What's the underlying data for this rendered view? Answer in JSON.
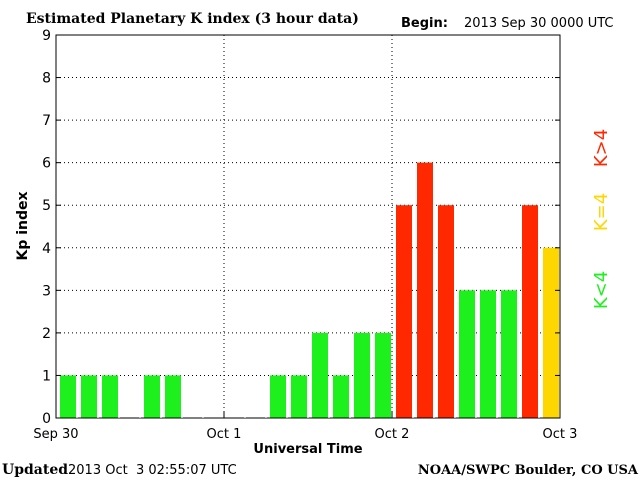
{
  "header": {
    "title": "Estimated Planetary K index (3 hour data)",
    "begin_label": "Begin:",
    "begin_value": "2013 Sep 30 0000 UTC"
  },
  "footer": {
    "updated_label": "Updated",
    "updated_value": "2013 Oct  3 02:55:07 UTC",
    "source": "NOAA/SWPC Boulder, CO USA"
  },
  "legend": [
    {
      "label": "K<4",
      "color": "#1ef01e"
    },
    {
      "label": "K=4",
      "color": "#ffd700"
    },
    {
      "label": "K>4",
      "color": "#ff2800"
    }
  ],
  "chart_data": {
    "type": "bar",
    "title": "Estimated Planetary K index (3 hour data)",
    "xlabel": "Universal Time",
    "ylabel": "Kp index",
    "ylim": [
      0,
      9
    ],
    "yticks": [
      "0",
      "1",
      "2",
      "3",
      "4",
      "5",
      "6",
      "7",
      "8",
      "9"
    ],
    "xticks": [
      "Sep 30",
      "Oct 1",
      "Oct 2",
      "Oct 3"
    ],
    "grid": true,
    "bins_per_day": 8,
    "colors": {
      "low": "#1ef01e",
      "equal": "#ffd700",
      "high": "#ff2800"
    },
    "values": [
      1,
      1,
      1,
      0,
      1,
      1,
      0,
      0,
      0,
      0,
      1,
      1,
      2,
      1,
      2,
      2,
      5,
      6,
      5,
      3,
      3,
      3,
      5,
      4
    ]
  }
}
